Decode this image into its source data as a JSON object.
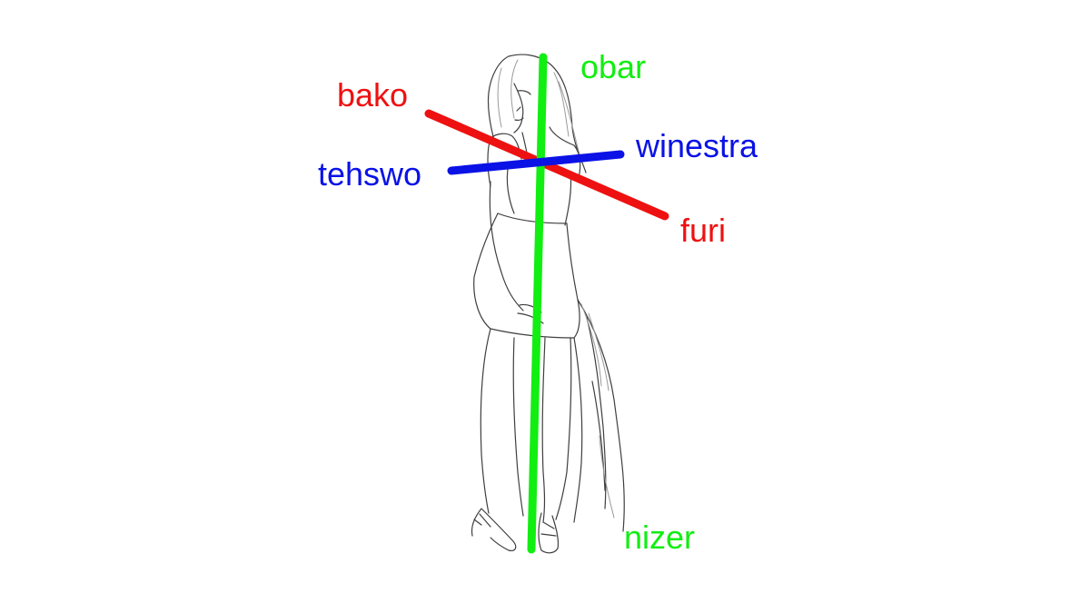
{
  "colors": {
    "red": "#ee1111",
    "blue": "#0a12e6",
    "green": "#11ee11"
  },
  "labels": {
    "bako": "bako",
    "furi": "furi",
    "tehswo": "tehswo",
    "winestra": "winestra",
    "obar": "obar",
    "nizer": "nizer"
  },
  "illustration": "pencil-sketch-of-standing-woman"
}
